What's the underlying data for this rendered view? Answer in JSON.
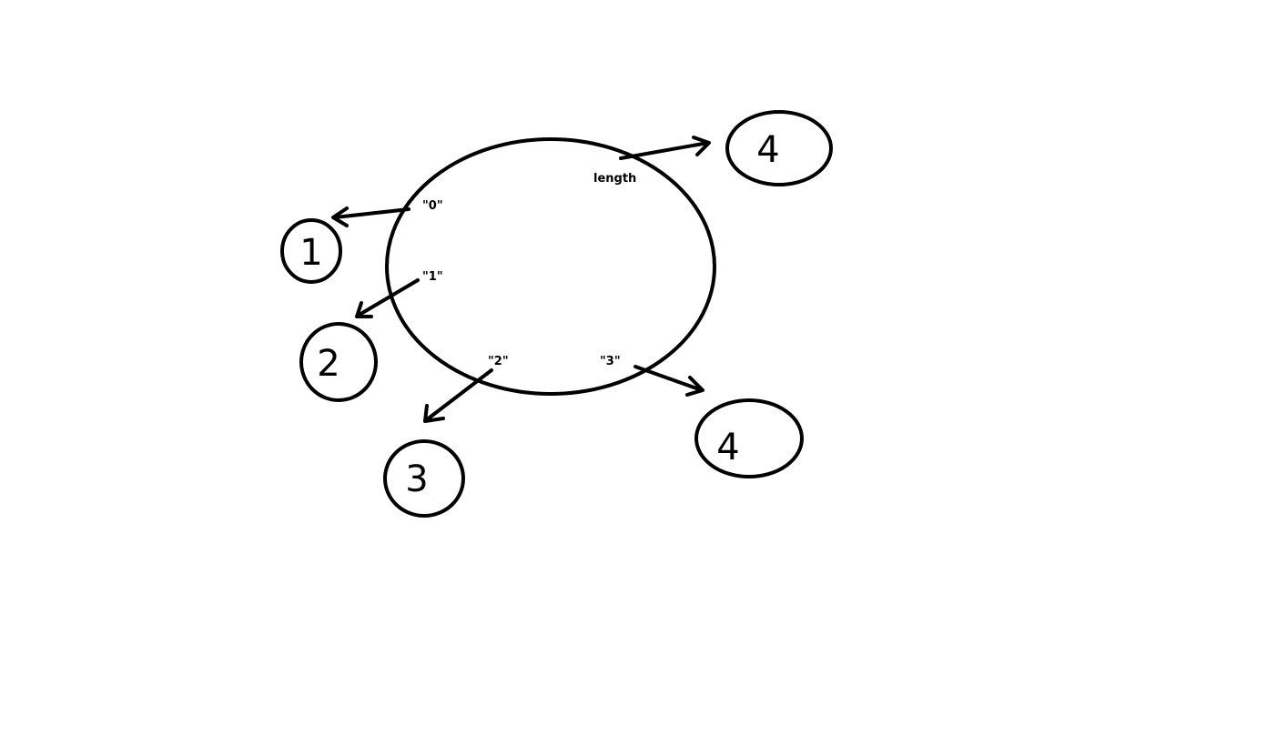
{
  "diagram": {
    "object": {
      "properties": [
        {
          "key": "\"0\"",
          "value": "1"
        },
        {
          "key": "\"1\"",
          "value": "2"
        },
        {
          "key": "\"2\"",
          "value": "3"
        },
        {
          "key": "\"3\"",
          "value": "4"
        },
        {
          "key": "length",
          "value": "4"
        }
      ]
    }
  },
  "colors": {
    "stroke": "#000000",
    "background": "#ffffff"
  }
}
